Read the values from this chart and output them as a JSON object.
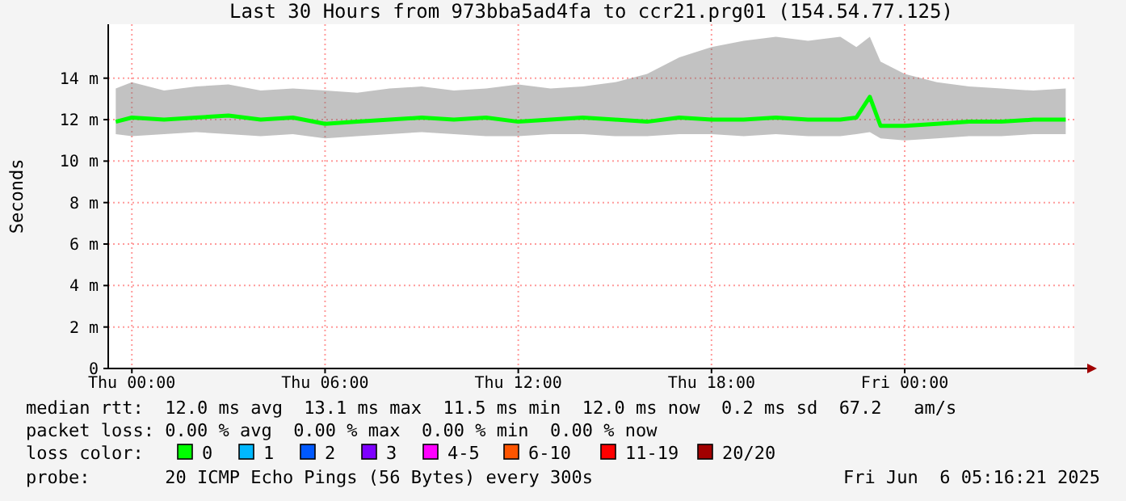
{
  "chart_data": {
    "type": "line",
    "title": "Last 30 Hours from 973bba5ad4fa to ccr21.prg01 (154.54.77.125)",
    "ylabel": "Seconds",
    "xlim": [
      "2025-06-04T23:16",
      "2025-06-06T05:16"
    ],
    "xticks": [
      {
        "value": "2025-06-05T00:00",
        "label": "Thu 00:00"
      },
      {
        "value": "2025-06-05T06:00",
        "label": "Thu 06:00"
      },
      {
        "value": "2025-06-05T12:00",
        "label": "Thu 12:00"
      },
      {
        "value": "2025-06-05T18:00",
        "label": "Thu 18:00"
      },
      {
        "value": "2025-06-06T00:00",
        "label": "Fri 00:00"
      }
    ],
    "ylim": [
      0,
      16.6
    ],
    "yticks": [
      {
        "value": 0,
        "label": "0"
      },
      {
        "value": 2,
        "label": "2 m"
      },
      {
        "value": 4,
        "label": "4 m"
      },
      {
        "value": 6,
        "label": "6 m"
      },
      {
        "value": 8,
        "label": "8 m"
      },
      {
        "value": 10,
        "label": "10 m"
      },
      {
        "value": 12,
        "label": "12 m"
      },
      {
        "value": 14,
        "label": "14 m"
      }
    ],
    "grid": true,
    "legend": "bottom",
    "legend_title": "loss color:",
    "series": [
      {
        "name": "0",
        "color": "#00ff00",
        "x": [
          "2025-06-04T23:30",
          "2025-06-05T00:00",
          "2025-06-05T01:00",
          "2025-06-05T02:00",
          "2025-06-05T03:00",
          "2025-06-05T04:00",
          "2025-06-05T05:00",
          "2025-06-05T06:00",
          "2025-06-05T07:00",
          "2025-06-05T08:00",
          "2025-06-05T09:00",
          "2025-06-05T10:00",
          "2025-06-05T11:00",
          "2025-06-05T12:00",
          "2025-06-05T13:00",
          "2025-06-05T14:00",
          "2025-06-05T15:00",
          "2025-06-05T16:00",
          "2025-06-05T17:00",
          "2025-06-05T18:00",
          "2025-06-05T19:00",
          "2025-06-05T20:00",
          "2025-06-05T21:00",
          "2025-06-05T22:00",
          "2025-06-05T22:30",
          "2025-06-05T22:55",
          "2025-06-05T23:15",
          "2025-06-06T00:00",
          "2025-06-06T01:00",
          "2025-06-06T02:00",
          "2025-06-06T03:00",
          "2025-06-06T04:00",
          "2025-06-06T05:00"
        ],
        "values": [
          11.9,
          12.1,
          12.0,
          12.1,
          12.2,
          12.0,
          12.1,
          11.8,
          11.9,
          12.0,
          12.1,
          12.0,
          12.1,
          11.9,
          12.0,
          12.1,
          12.0,
          11.9,
          12.1,
          12.0,
          12.0,
          12.1,
          12.0,
          12.0,
          12.1,
          13.1,
          11.7,
          11.7,
          11.8,
          11.9,
          11.9,
          12.0,
          12.0
        ],
        "lower": [
          11.3,
          11.2,
          11.3,
          11.4,
          11.3,
          11.2,
          11.3,
          11.1,
          11.2,
          11.3,
          11.4,
          11.3,
          11.2,
          11.2,
          11.3,
          11.3,
          11.2,
          11.2,
          11.3,
          11.3,
          11.2,
          11.3,
          11.2,
          11.2,
          11.3,
          11.4,
          11.1,
          11.0,
          11.1,
          11.2,
          11.2,
          11.3,
          11.3
        ],
        "upper": [
          13.5,
          13.8,
          13.4,
          13.6,
          13.7,
          13.4,
          13.5,
          13.4,
          13.3,
          13.5,
          13.6,
          13.4,
          13.5,
          13.7,
          13.5,
          13.6,
          13.8,
          14.2,
          15.0,
          15.5,
          15.8,
          16.0,
          15.8,
          16.0,
          15.5,
          16.0,
          14.8,
          14.2,
          13.8,
          13.6,
          13.5,
          13.4,
          13.5
        ]
      },
      {
        "name": "1",
        "color": "#00b8ff"
      },
      {
        "name": "2",
        "color": "#0059ff"
      },
      {
        "name": "3",
        "color": "#7e00ff"
      },
      {
        "name": "4-5",
        "color": "#ff00ff"
      },
      {
        "name": "6-10",
        "color": "#ff5500"
      },
      {
        "name": "11-19",
        "color": "#ff0000"
      },
      {
        "name": "20/20",
        "color": "#a10000"
      }
    ],
    "annotations": [
      "median rtt:  12.0 ms avg  13.1 ms max  11.5 ms min  12.0 ms now  0.2 ms sd  67.2   am/s",
      "packet loss: 0.00 % avg  0.00 % max  0.00 % min  0.00 % now",
      "probe:       20 ICMP Echo Pings (56 Bytes) every 300s",
      "Fri Jun  6 05:16:21 2025"
    ]
  }
}
